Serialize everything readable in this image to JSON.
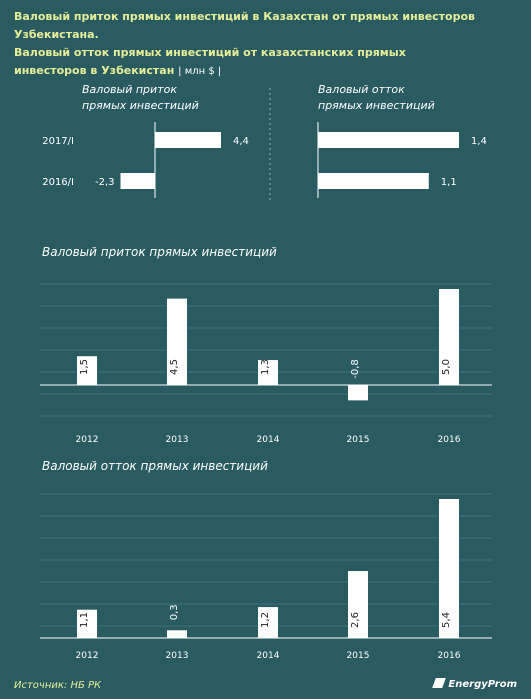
{
  "header": {
    "line1": "Валовый приток прямых инвестиций в Казахстан от прямых инвесторов Узбекистана.",
    "line2": "Валовый отток прямых инвестиций от казахстанских прямых",
    "line3": "инвесторов в Узбекистан",
    "unit": "| млн $ |"
  },
  "footer": {
    "source": "Источник: НБ РК",
    "brand": "EnergyProm"
  },
  "colors": {
    "background": "#2a5b61",
    "bar": "#ffffff",
    "axis": "#ffffff",
    "grid": "#3f7279",
    "accent": "#e6ef98"
  },
  "chart_data": [
    {
      "type": "bar",
      "orientation": "horizontal",
      "title": "Валовый приток\nпрямых инвестиций",
      "categories": [
        "2017/I",
        "2016/I"
      ],
      "values": [
        4.4,
        -2.3
      ],
      "value_labels": [
        "4,4",
        "-2,3"
      ],
      "xlim": [
        -3,
        7
      ]
    },
    {
      "type": "bar",
      "orientation": "horizontal",
      "title": "Валовый отток\nпрямых инвестиций",
      "categories": [
        "2017/I",
        "2016/I"
      ],
      "values": [
        1.4,
        1.1
      ],
      "value_labels": [
        "1,4",
        "1,1"
      ],
      "xlim": [
        0,
        1.5
      ]
    },
    {
      "type": "bar",
      "title": "Валовый приток прямых инвестиций",
      "categories": [
        "2012",
        "2013",
        "2014",
        "2015",
        "2016"
      ],
      "values": [
        1.5,
        4.5,
        1.3,
        -0.8,
        5.0
      ],
      "value_labels": [
        "1,5",
        "4,5",
        "1,3",
        "-0,8",
        "5,0"
      ],
      "ylim": [
        -2,
        5.2
      ],
      "grid": true
    },
    {
      "type": "bar",
      "title": "Валовый отток прямых инвестиций",
      "categories": [
        "2012",
        "2013",
        "2014",
        "2015",
        "2016"
      ],
      "values": [
        1.1,
        0.3,
        1.2,
        2.6,
        5.4
      ],
      "value_labels": [
        "1,1",
        "0,3",
        "1,2",
        "2,6",
        "5,4"
      ],
      "ylim": [
        0,
        5.7
      ],
      "grid": true
    }
  ]
}
